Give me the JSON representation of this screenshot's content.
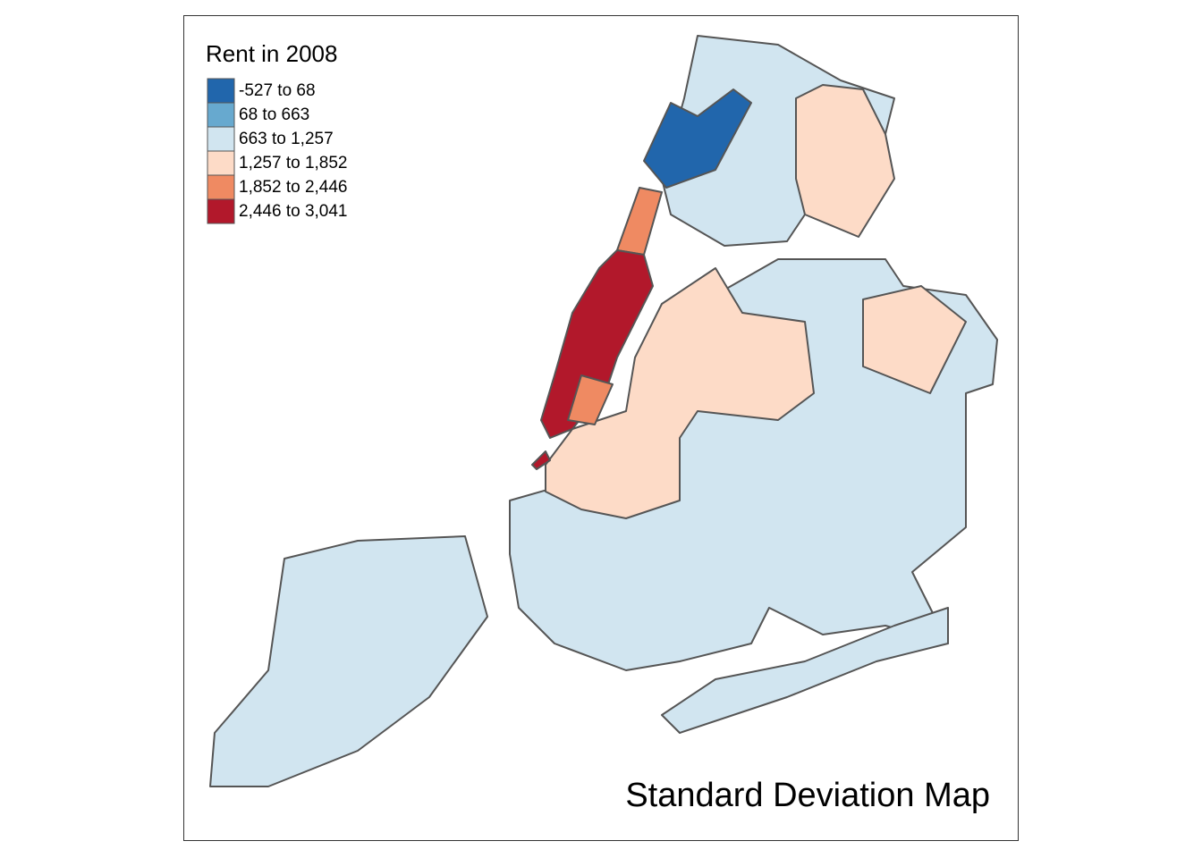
{
  "map": {
    "title": "Standard Deviation Map",
    "legend": {
      "title": "Rent in 2008",
      "items": [
        {
          "label": "-527 to 68",
          "color": "#2166ac"
        },
        {
          "label": "68 to 663",
          "color": "#67a9cf"
        },
        {
          "label": "663 to 1,257",
          "color": "#d1e5f0"
        },
        {
          "label": "1,257 to 1,852",
          "color": "#fddbc7"
        },
        {
          "label": "1,852 to 2,446",
          "color": "#ef8a62"
        },
        {
          "label": "2,446 to 3,041",
          "color": "#b2182b"
        }
      ]
    }
  }
}
